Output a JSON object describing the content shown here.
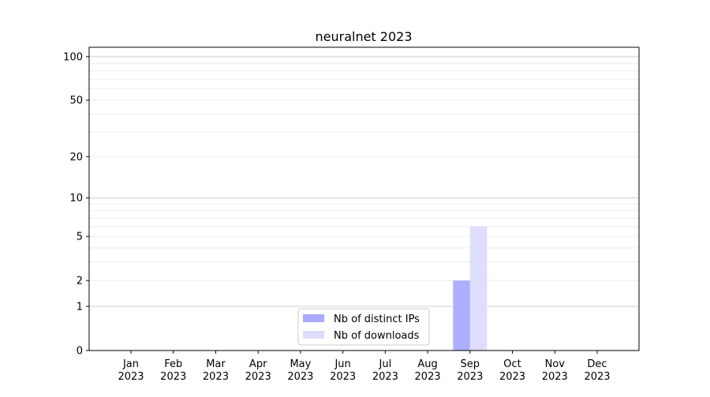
{
  "chart_data": {
    "type": "bar",
    "title": "neuralnet 2023",
    "xlabel": "",
    "ylabel": "",
    "categories": [
      "Jan\n2023",
      "Feb\n2023",
      "Mar\n2023",
      "Apr\n2023",
      "May\n2023",
      "Jun\n2023",
      "Jul\n2023",
      "Aug\n2023",
      "Sep\n2023",
      "Oct\n2023",
      "Nov\n2023",
      "Dec\n2023"
    ],
    "series": [
      {
        "name": "Nb of distinct IPs",
        "color": "#aaaaff",
        "values": [
          0,
          0,
          0,
          0,
          0,
          0,
          0,
          0,
          2,
          0,
          0,
          0
        ]
      },
      {
        "name": "Nb of downloads",
        "color": "#dcdcfc",
        "values": [
          0,
          0,
          0,
          0,
          0,
          0,
          0,
          0,
          6,
          0,
          0,
          0
        ]
      }
    ],
    "y_scale": "log(1+y)",
    "ylim": [
      0,
      116
    ],
    "yticks": [
      0,
      1,
      2,
      5,
      10,
      20,
      50,
      100
    ],
    "grid": true,
    "legend": "bottom-center"
  }
}
